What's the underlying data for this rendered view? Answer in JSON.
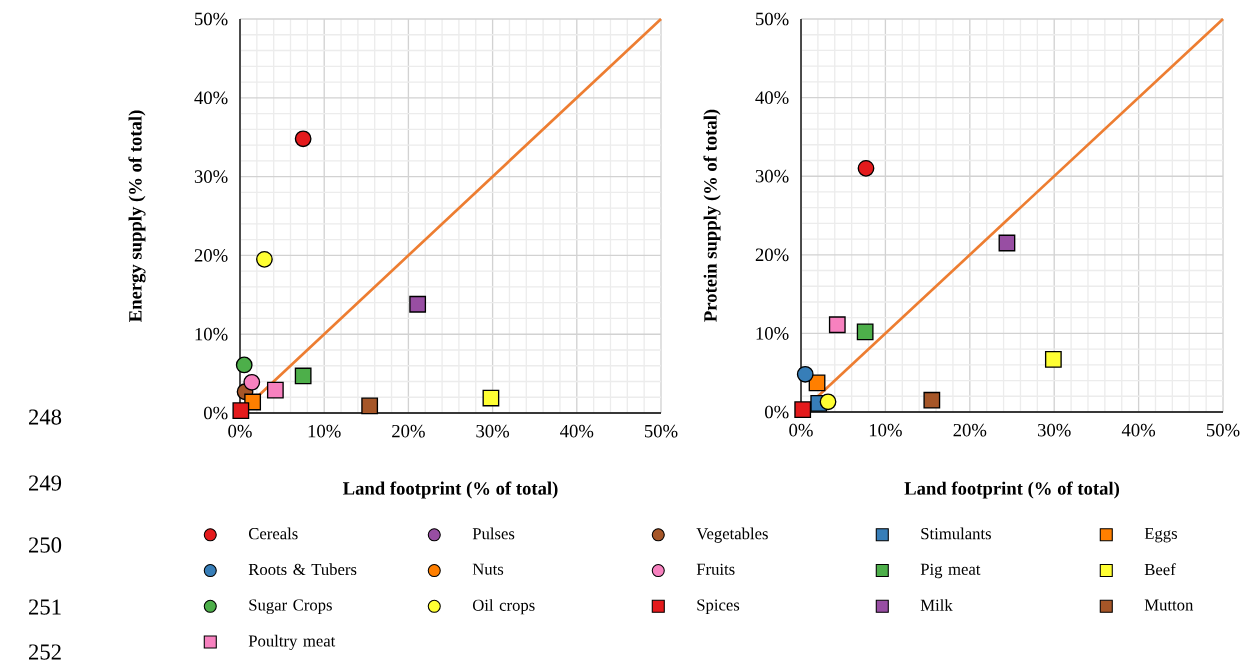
{
  "chart_data": [
    {
      "type": "scatter",
      "xlabel": "Land footprint (% of total)",
      "ylabel": "Energy supply (% of total)",
      "xlim": [
        0,
        50
      ],
      "ylim": [
        0,
        50
      ],
      "xticks": [
        {
          "value": 0,
          "label": "0%"
        },
        {
          "value": 10,
          "label": "10%"
        },
        {
          "value": 20,
          "label": "20%"
        },
        {
          "value": 30,
          "label": "30%"
        },
        {
          "value": 40,
          "label": "40%"
        },
        {
          "value": 50,
          "label": "50%"
        }
      ],
      "yticks": [
        {
          "value": 0,
          "label": "0%"
        },
        {
          "value": 10,
          "label": "10%"
        },
        {
          "value": 20,
          "label": "20%"
        },
        {
          "value": 30,
          "label": "30%"
        },
        {
          "value": 40,
          "label": "40%"
        },
        {
          "value": 50,
          "label": "50%"
        }
      ],
      "grid": true,
      "legend": "bottom",
      "annotations": [
        "248",
        "249",
        "250",
        "251",
        "252"
      ],
      "series": [
        {
          "name": "Cereals",
          "color": "#e41a1c",
          "marker": "circle",
          "x": [
            7.5
          ],
          "values": [
            34.8
          ]
        },
        {
          "name": "Pulses",
          "color": "#984ea3",
          "marker": "circle",
          "x": [
            null
          ],
          "values": [
            null
          ]
        },
        {
          "name": "Vegetables",
          "color": "#a65628",
          "marker": "circle",
          "x": [
            0.6
          ],
          "values": [
            2.7
          ]
        },
        {
          "name": "Stimulants",
          "color": "#377eb8",
          "marker": "square",
          "x": [
            null
          ],
          "values": [
            null
          ]
        },
        {
          "name": "Eggs",
          "color": "#ff7f00",
          "marker": "square",
          "x": [
            1.5
          ],
          "values": [
            1.4
          ]
        },
        {
          "name": "Roots & Tubers",
          "color": "#377eb8",
          "marker": "circle",
          "x": [
            null
          ],
          "values": [
            null
          ]
        },
        {
          "name": "Nuts",
          "color": "#ff7f00",
          "marker": "circle",
          "x": [
            null
          ],
          "values": [
            null
          ]
        },
        {
          "name": "Fruits",
          "color": "#f781bf",
          "marker": "circle",
          "x": [
            1.4
          ],
          "values": [
            3.9
          ]
        },
        {
          "name": "Pig meat",
          "color": "#4daf4a",
          "marker": "square",
          "x": [
            7.5
          ],
          "values": [
            4.7
          ]
        },
        {
          "name": "Beef",
          "color": "#ffff33",
          "marker": "square",
          "x": [
            29.8
          ],
          "values": [
            1.9
          ]
        },
        {
          "name": "Sugar Crops",
          "color": "#4daf4a",
          "marker": "circle",
          "x": [
            0.5
          ],
          "values": [
            6.1
          ]
        },
        {
          "name": "Oil crops",
          "color": "#ffff33",
          "marker": "circle",
          "x": [
            2.9
          ],
          "values": [
            19.5
          ]
        },
        {
          "name": "Spices",
          "color": "#e41a1c",
          "marker": "square",
          "x": [
            0.1
          ],
          "values": [
            0.3
          ]
        },
        {
          "name": "Milk",
          "color": "#984ea3",
          "marker": "square",
          "x": [
            21.1
          ],
          "values": [
            13.8
          ]
        },
        {
          "name": "Mutton",
          "color": "#a65628",
          "marker": "square",
          "x": [
            15.4
          ],
          "values": [
            0.9
          ]
        },
        {
          "name": "Poultry meat",
          "color": "#f781bf",
          "marker": "square",
          "x": [
            4.2
          ],
          "values": [
            2.9
          ]
        },
        {
          "type": "line",
          "color": "#ed7d31",
          "marker": "none",
          "line_style": "solid",
          "x": [
            0,
            50
          ],
          "values": [
            0,
            50
          ]
        }
      ]
    },
    {
      "type": "scatter",
      "xlabel": "Land footprint (% of total)",
      "ylabel": "Protein supply (% of total)",
      "xlim": [
        0,
        50
      ],
      "ylim": [
        0,
        50
      ],
      "xticks": [
        {
          "value": 0,
          "label": "0%"
        },
        {
          "value": 10,
          "label": "10%"
        },
        {
          "value": 20,
          "label": "20%"
        },
        {
          "value": 30,
          "label": "30%"
        },
        {
          "value": 40,
          "label": "40%"
        },
        {
          "value": 50,
          "label": "50%"
        }
      ],
      "yticks": [
        {
          "value": 0,
          "label": "0%"
        },
        {
          "value": 10,
          "label": "10%"
        },
        {
          "value": 20,
          "label": "20%"
        },
        {
          "value": 30,
          "label": "30%"
        },
        {
          "value": 40,
          "label": "40%"
        },
        {
          "value": 50,
          "label": "50%"
        }
      ],
      "grid": true,
      "series": [
        {
          "color": "#e41a1c",
          "marker": "circle",
          "x": [
            7.7
          ],
          "values": [
            31.0
          ]
        },
        {
          "color": "#984ea3",
          "marker": "circle",
          "x": [
            null
          ],
          "values": [
            null
          ]
        },
        {
          "color": "#a65628",
          "marker": "circle",
          "x": [
            null
          ],
          "values": [
            null
          ]
        },
        {
          "color": "#377eb8",
          "marker": "square",
          "x": [
            2.1
          ],
          "values": [
            1.1
          ]
        },
        {
          "color": "#ff7f00",
          "marker": "square",
          "x": [
            1.9
          ],
          "values": [
            3.7
          ]
        },
        {
          "color": "#377eb8",
          "marker": "circle",
          "x": [
            0.5
          ],
          "values": [
            4.8
          ]
        },
        {
          "color": "#ff7f00",
          "marker": "circle",
          "x": [
            null
          ],
          "values": [
            null
          ]
        },
        {
          "color": "#f781bf",
          "marker": "circle",
          "x": [
            null
          ],
          "values": [
            null
          ]
        },
        {
          "color": "#4daf4a",
          "marker": "square",
          "x": [
            7.6
          ],
          "values": [
            10.2
          ]
        },
        {
          "color": "#ffff33",
          "marker": "square",
          "x": [
            29.9
          ],
          "values": [
            6.7
          ]
        },
        {
          "color": "#4daf4a",
          "marker": "circle",
          "x": [
            null
          ],
          "values": [
            null
          ]
        },
        {
          "color": "#ffff33",
          "marker": "circle",
          "x": [
            3.2
          ],
          "values": [
            1.3
          ]
        },
        {
          "color": "#e41a1c",
          "marker": "square",
          "x": [
            0.2
          ],
          "values": [
            0.3
          ]
        },
        {
          "color": "#984ea3",
          "marker": "square",
          "x": [
            24.4
          ],
          "values": [
            21.5
          ]
        },
        {
          "color": "#a65628",
          "marker": "square",
          "x": [
            15.5
          ],
          "values": [
            1.5
          ]
        },
        {
          "color": "#f781bf",
          "marker": "square",
          "x": [
            4.3
          ],
          "values": [
            11.1
          ]
        },
        {
          "type": "line",
          "color": "#ed7d31",
          "marker": "none",
          "line_style": "solid",
          "x": [
            0,
            50
          ],
          "values": [
            0,
            50
          ]
        }
      ]
    }
  ]
}
